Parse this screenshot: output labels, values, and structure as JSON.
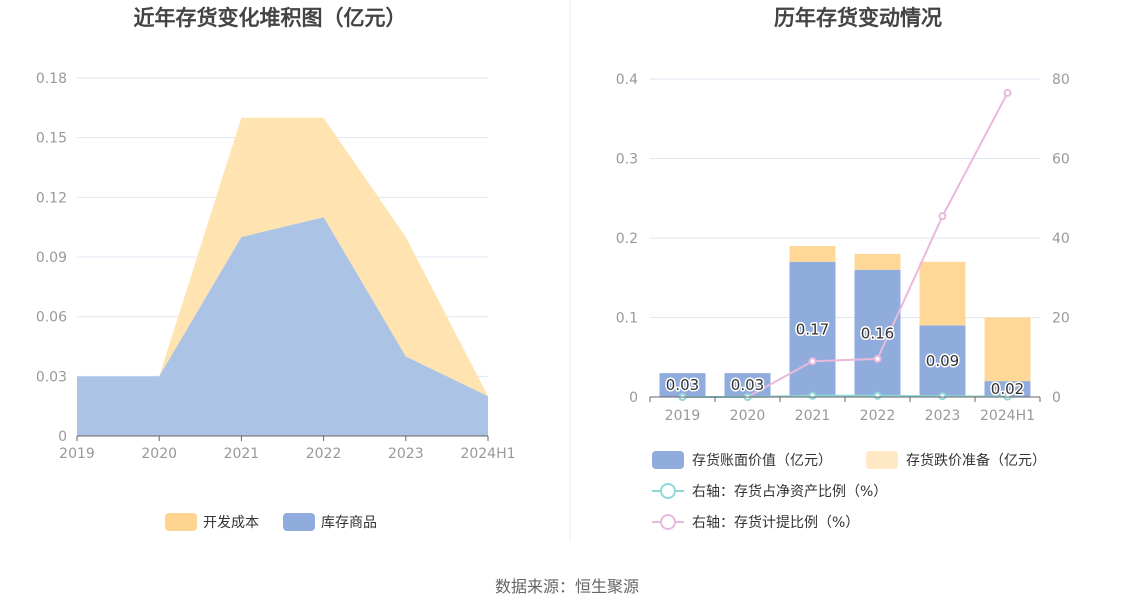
{
  "source_label": "数据来源：恒生聚源",
  "colors": {
    "dev_cost": "#FFE3B0",
    "dev_cost_legend": "#FFD491",
    "inventory_goods": "#ABC3E5",
    "inventory_goods_legend": "#8FACDD",
    "book_value": "#8FACDD",
    "impairment": "#FFD898",
    "impairment_legend": "#FFE9C4",
    "net_assets_ratio": "#8ED8D8",
    "provision_ratio": "#E8B9DD",
    "grid": "#E3E6F0",
    "axis": "#999999"
  },
  "chart_data": [
    {
      "type": "area",
      "stacked": true,
      "title": "近年存货变化堆积图（亿元）",
      "categories": [
        "2019",
        "2020",
        "2021",
        "2022",
        "2023",
        "2024H1"
      ],
      "series": [
        {
          "name": "库存商品",
          "values": [
            0.03,
            0.03,
            0.1,
            0.11,
            0.04,
            0.02
          ]
        },
        {
          "name": "开发成本",
          "values": [
            0.0,
            0.0,
            0.06,
            0.05,
            0.06,
            0.0
          ]
        }
      ],
      "ylim": [
        0,
        0.18
      ],
      "yticks": [
        "0",
        "0.03",
        "0.06",
        "0.09",
        "0.12",
        "0.15",
        "0.18"
      ],
      "legend": [
        "开发成本",
        "库存商品"
      ],
      "legend_position": "bottom",
      "grid": true
    },
    {
      "type": "bar+line",
      "title": "历年存货变动情况",
      "categories": [
        "2019",
        "2020",
        "2021",
        "2022",
        "2023",
        "2024H1"
      ],
      "bar_series": [
        {
          "name": "存货账面价值（亿元）",
          "values": [
            0.03,
            0.03,
            0.17,
            0.16,
            0.09,
            0.02
          ],
          "labels": [
            "0.03",
            "0.03",
            "0.17",
            "0.16",
            "0.09",
            "0.02"
          ]
        },
        {
          "name": "存货跌价准备（亿元）",
          "values": [
            0.0,
            0.0,
            0.02,
            0.02,
            0.08,
            0.08
          ]
        }
      ],
      "line_series": [
        {
          "name": "右轴：存货占净资产比例（%）",
          "values": [
            0,
            0,
            0.3,
            0.3,
            0.2,
            0.1
          ]
        },
        {
          "name": "右轴：存货计提比例（%）",
          "values": [
            0,
            0,
            9.0,
            9.6,
            45.5,
            76.5
          ]
        }
      ],
      "ylim_left": [
        0,
        0.4
      ],
      "yticks_left": [
        "0",
        "0.1",
        "0.2",
        "0.3",
        "0.4"
      ],
      "ylim_right": [
        0,
        80
      ],
      "yticks_right": [
        "0",
        "20",
        "40",
        "60",
        "80"
      ],
      "legend_position": "bottom",
      "grid": true
    }
  ]
}
